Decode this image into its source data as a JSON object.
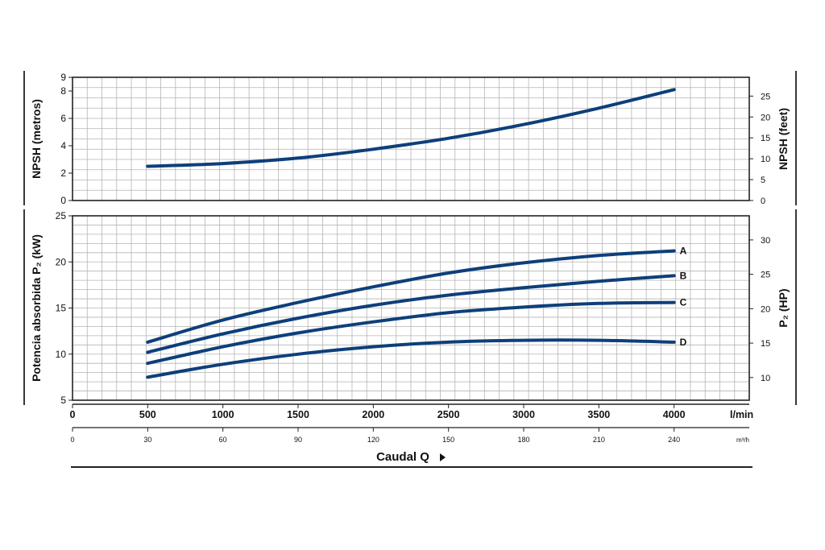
{
  "chart_data": [
    {
      "type": "line",
      "name": "npsh",
      "ylabel_left": "NPSH  (metros)",
      "ylabel_right": "NPSH (feet)",
      "xlim": [
        0,
        4500
      ],
      "ylim": [
        0,
        9
      ],
      "ylim_right": [
        0,
        29.5
      ],
      "yticks_left": [
        "0",
        "2",
        "4",
        "6",
        "8",
        "9"
      ],
      "yticks_right": [
        "0",
        "5",
        "10",
        "15",
        "20",
        "25"
      ],
      "grid": true,
      "series": [
        {
          "x": [
            500,
            1000,
            1500,
            2000,
            2500,
            3000,
            3500,
            4000
          ],
          "values": [
            2.5,
            2.7,
            3.1,
            3.75,
            4.55,
            5.55,
            6.75,
            8.1
          ]
        }
      ]
    },
    {
      "type": "line",
      "name": "power",
      "ylabel_left": "Potencia absorbida P₂ (kW)",
      "ylabel_right": "P₂ (HP)",
      "xlim": [
        0,
        4500
      ],
      "ylim": [
        5,
        25
      ],
      "ylim_right": [
        6.7,
        33.5
      ],
      "yticks_left": [
        "5",
        "10",
        "15",
        "20",
        "25"
      ],
      "yticks_right": [
        "10",
        "15",
        "20",
        "25",
        "30"
      ],
      "grid": true,
      "series": [
        {
          "name": "A",
          "x": [
            500,
            1000,
            1500,
            2000,
            2500,
            3000,
            3500,
            4000
          ],
          "values": [
            11.3,
            13.7,
            15.6,
            17.3,
            18.8,
            19.9,
            20.7,
            21.2
          ]
        },
        {
          "name": "B",
          "x": [
            500,
            1000,
            1500,
            2000,
            2500,
            3000,
            3500,
            4000
          ],
          "values": [
            10.2,
            12.2,
            13.9,
            15.3,
            16.4,
            17.2,
            17.9,
            18.5
          ]
        },
        {
          "name": "C",
          "x": [
            500,
            1000,
            1500,
            2000,
            2500,
            3000,
            3500,
            4000
          ],
          "values": [
            9.0,
            10.8,
            12.3,
            13.5,
            14.5,
            15.1,
            15.5,
            15.6
          ]
        },
        {
          "name": "D",
          "x": [
            500,
            1000,
            1500,
            2000,
            2500,
            3000,
            3500,
            4000
          ],
          "values": [
            7.5,
            8.9,
            10.0,
            10.8,
            11.3,
            11.5,
            11.5,
            11.3
          ]
        }
      ]
    }
  ],
  "axis": {
    "lmin_ticks": [
      "0",
      "500",
      "1000",
      "1500",
      "2000",
      "2500",
      "3000",
      "3500",
      "4000"
    ],
    "lmin_unit": "l/min",
    "m3h_ticks": [
      "0",
      "30",
      "60",
      "90",
      "120",
      "150",
      "180",
      "210",
      "240"
    ],
    "m3h_unit": "m³/h",
    "xlabel": "Caudal Q"
  },
  "colors": {
    "curve": "#0d3f7a",
    "grid": "#b4b4b4",
    "frame": "#222222",
    "text": "#111111"
  }
}
